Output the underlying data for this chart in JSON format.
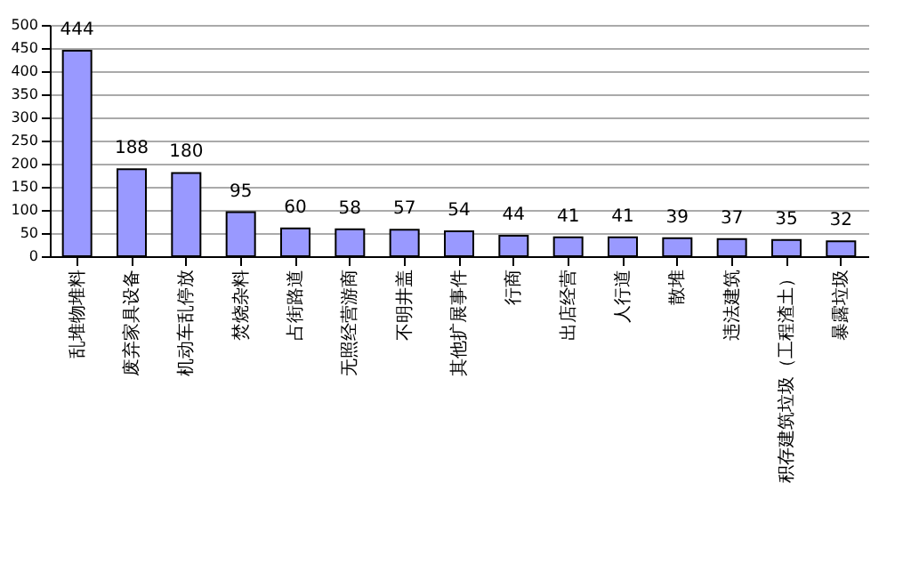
{
  "chart_data": {
    "type": "bar",
    "categories": [
      "乱堆物堆料",
      "废弃家具设备",
      "机动车乱停放",
      "焚烧杂料",
      "占街路道",
      "无照经营游商",
      "不明井盖",
      "其他扩展事件",
      "行商",
      "出店经营",
      "人行道",
      "散堆",
      "违法建筑",
      "积存建筑垃圾（工程渣土）",
      "暴露垃圾"
    ],
    "values": [
      444,
      188,
      180,
      95,
      60,
      58,
      57,
      54,
      44,
      41,
      41,
      39,
      37,
      35,
      32
    ],
    "color": "#9999ff",
    "ylim": [
      0,
      500
    ],
    "yticks": [
      0,
      50,
      100,
      150,
      200,
      250,
      300,
      350,
      400,
      450,
      500
    ],
    "grid": "y",
    "data_labels": true
  }
}
